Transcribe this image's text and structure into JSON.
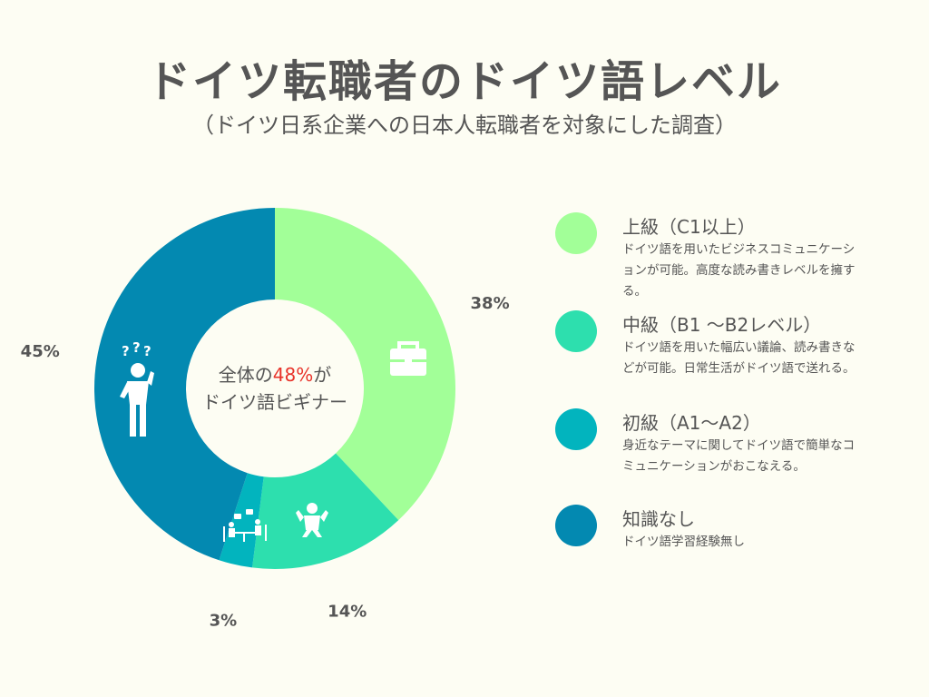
{
  "header": {
    "title": "ドイツ転職者のドイツ語レベル",
    "subtitle": "（ドイツ日系企業への日本人転職者を対象にした調査）"
  },
  "center": {
    "prefix": "全体の",
    "highlight": "48%",
    "suffix": "が",
    "line2": "ドイツ語ビギナー"
  },
  "chart_data": {
    "type": "pie",
    "categories": [
      "上級（C1以上）",
      "中級（B1 〜B2レベル）",
      "初級（A1〜A2）",
      "知識なし"
    ],
    "values": [
      38,
      14,
      3,
      45
    ],
    "labels": [
      "38%",
      "14%",
      "3%",
      "45%"
    ],
    "colors": [
      "#a2ff98",
      "#2ddfae",
      "#02b4be",
      "#0389b1"
    ],
    "icons": [
      "briefcase-icon",
      "strong-person-icon",
      "meeting-icon",
      "confused-person-icon"
    ],
    "legend": "right"
  },
  "legend": {
    "items": [
      {
        "label": "上級（C1以上）",
        "desc": "ドイツ語を用いたビジネスコミュニケーションが可能。高度な読み書きレベルを擁する。",
        "color": "#a2ff98"
      },
      {
        "label": "中級（B1 〜B2レベル）",
        "desc": "ドイツ語を用いた幅広い議論、読み書きなどが可能。日常生活がドイツ語で送れる。",
        "color": "#2ddfae"
      },
      {
        "label": "初級（A1〜A2）",
        "desc": "身近なテーマに関してドイツ語で簡単なコミュニケーションがおこなえる。",
        "color": "#02b4be"
      },
      {
        "label": "知識なし",
        "desc": "ドイツ語学習経験無し",
        "color": "#0389b1"
      }
    ]
  }
}
